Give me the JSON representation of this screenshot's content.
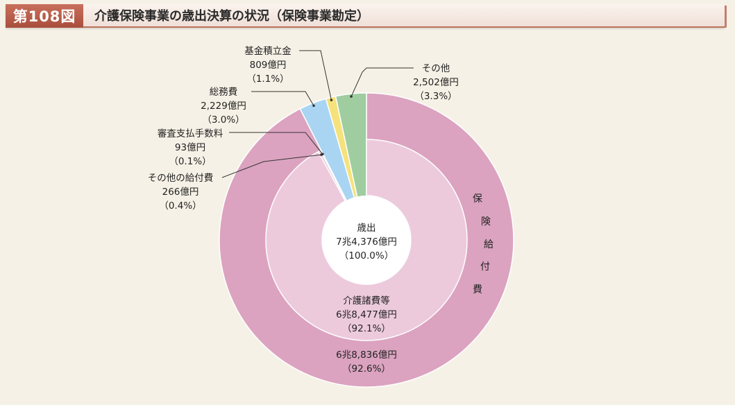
{
  "header": {
    "figure_number": "第108図",
    "title": "介護保険事業の歳出決算の状況（保険事業勘定）"
  },
  "colors": {
    "insurance_benefits": "#dba3c0",
    "care_costs": "#eccadc",
    "other_benefits": "#e7c0d4",
    "review_fees": "#f3dcea",
    "admin_costs": "#a9d5f2",
    "fund_reserve": "#f6e27c",
    "others": "#9fcd9f"
  },
  "chart_data": {
    "type": "pie",
    "center_label": {
      "line1": "歳出",
      "line2": "7兆4,376億円",
      "line3": "（100.0%）"
    },
    "outer_ring": [
      {
        "name": "保険給付費",
        "value_oku": 68836,
        "percent": 92.6,
        "value_text": "6兆8,836億円",
        "percent_text": "（92.6%）"
      },
      {
        "name": "総務費",
        "value_oku": 2229,
        "percent": 3.0,
        "value_text": "2,229億円",
        "percent_text": "（3.0%）"
      },
      {
        "name": "基金積立金",
        "value_oku": 809,
        "percent": 1.1,
        "value_text": "809億円",
        "percent_text": "（1.1%）"
      },
      {
        "name": "その他",
        "value_oku": 2502,
        "percent": 3.3,
        "value_text": "2,502億円",
        "percent_text": "（3.3%）"
      }
    ],
    "inner_ring": [
      {
        "name": "介護諸費等",
        "value_oku": 68477,
        "percent": 92.1,
        "value_text": "6兆8,477億円",
        "percent_text": "（92.1%）"
      },
      {
        "name": "その他の給付費",
        "value_oku": 266,
        "percent": 0.4,
        "value_text": "266億円",
        "percent_text": "（0.4%）"
      },
      {
        "name": "審査支払手数料",
        "value_oku": 93,
        "percent": 0.1,
        "value_text": "93億円",
        "percent_text": "（0.1%）"
      }
    ],
    "vertical_label": [
      "保",
      "険",
      "給",
      "付",
      "費"
    ]
  }
}
